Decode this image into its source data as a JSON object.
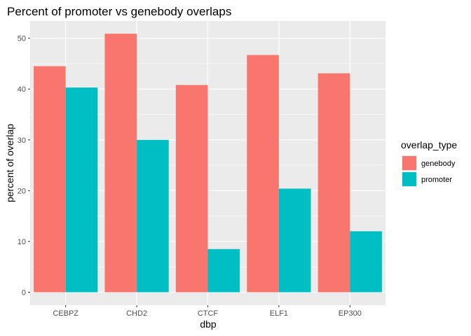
{
  "chart_data": {
    "type": "bar",
    "title": "Percent of promoter vs genebody overlaps",
    "xlabel": "dbp",
    "ylabel": "percent of overlap",
    "categories": [
      "CEBPZ",
      "CHD2",
      "CTCF",
      "ELF1",
      "EP300"
    ],
    "series": [
      {
        "name": "genebody",
        "values": [
          44.5,
          50.9,
          40.8,
          46.7,
          43.1
        ]
      },
      {
        "name": "promoter",
        "values": [
          40.3,
          30.0,
          8.5,
          20.4,
          12.0
        ]
      }
    ],
    "y_ticks": [
      0,
      10,
      20,
      30,
      40,
      50
    ],
    "ylim": [
      -2.55,
      53.4
    ],
    "grid": true,
    "legend": {
      "title": "overlap_type",
      "placement": "right"
    }
  },
  "colors": {
    "genebody": "#F8766D",
    "promoter": "#00BFC4",
    "panel_background": "#EBEBEB",
    "grid": "#FFFFFF"
  }
}
